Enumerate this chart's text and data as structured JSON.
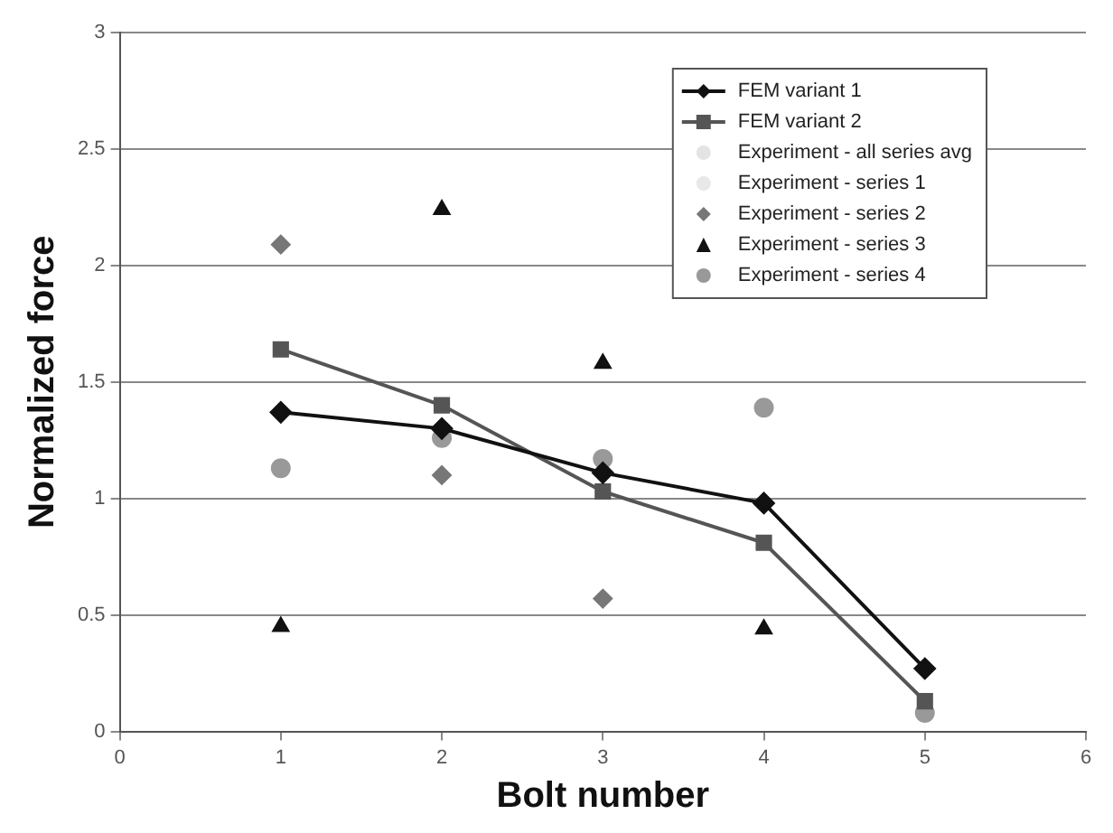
{
  "chart_data": {
    "type": "line",
    "xlabel": "Bolt number",
    "ylabel": "Normalized force",
    "x": [
      1,
      2,
      3,
      4,
      5
    ],
    "xlim": [
      0,
      6
    ],
    "xticks": [
      0,
      1,
      2,
      3,
      4,
      5,
      6
    ],
    "ylim": [
      0,
      3
    ],
    "yticks": [
      0,
      0.5,
      1,
      1.5,
      2,
      2.5,
      3
    ],
    "grid": "y",
    "legend": "top right",
    "series": [
      {
        "name": "FEM variant 1",
        "marker": "diamond",
        "color": "#111111",
        "values": [
          1.37,
          1.3,
          1.11,
          0.98,
          0.27
        ]
      },
      {
        "name": "FEM variant 2",
        "marker": "square",
        "color": "#555555",
        "values": [
          1.64,
          1.4,
          1.03,
          0.81,
          0.13
        ]
      },
      {
        "name": "Experiment - all series avg",
        "type": "scatter",
        "marker": "circle",
        "color": "#e4e4e4",
        "values": [
          null,
          null,
          null,
          null,
          null
        ]
      },
      {
        "name": "Experiment - series 1",
        "type": "scatter",
        "marker": "circle",
        "color": "#e8e8e8",
        "values": [
          null,
          null,
          null,
          null,
          null
        ]
      },
      {
        "name": "Experiment - series 2",
        "type": "scatter",
        "marker": "diamond",
        "color": "#777777",
        "values": [
          2.09,
          1.1,
          0.57,
          null,
          null
        ]
      },
      {
        "name": "Experiment - series 3",
        "type": "scatter",
        "marker": "triangle",
        "color": "#111111",
        "values": [
          0.45,
          2.24,
          1.58,
          0.44,
          null
        ]
      },
      {
        "name": "Experiment - series 4",
        "type": "scatter",
        "marker": "circle",
        "color": "#999999",
        "values": [
          1.13,
          1.26,
          1.17,
          1.39,
          0.08
        ]
      }
    ]
  }
}
